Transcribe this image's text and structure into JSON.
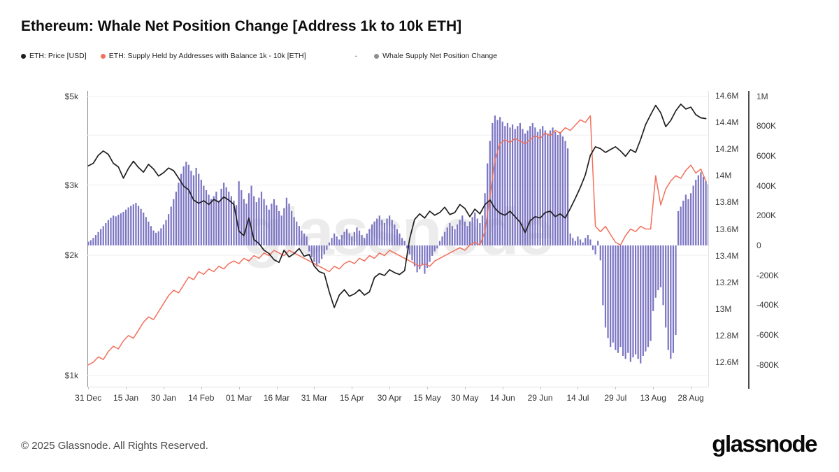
{
  "title": "Ethereum: Whale Net Position Change [Address 1k to 10k ETH]",
  "legend": {
    "items": [
      {
        "label": "ETH: Price [USD]"
      },
      {
        "label": "ETH: Supply Held by Addresses with Balance 1k - 10k [ETH]"
      },
      {
        "label": "Whale Supply Net Position Change"
      }
    ],
    "dash": "-"
  },
  "colors": {
    "price": "#1f1f1f",
    "supply": "#f2705c",
    "bars": "#7b75c3",
    "whale_dot": "#8e8e8e",
    "grid": "#efefef"
  },
  "watermark": "glassnode",
  "footer": {
    "copyright": "© 2025 Glassnode. All Rights Reserved.",
    "logo": "glassnode"
  },
  "axes": {
    "price": {
      "labels": [
        "$5k",
        "$3k",
        "$2k",
        "$1k"
      ],
      "values": [
        5000,
        3000,
        2000,
        1000
      ]
    },
    "supply": {
      "labels": [
        "14.6M",
        "14.4M",
        "14.2M",
        "14M",
        "13.8M",
        "13.6M",
        "13.4M",
        "13.2M",
        "13M",
        "12.8M",
        "12.6M"
      ],
      "values": [
        14.6,
        14.4,
        14.2,
        14.0,
        13.8,
        13.6,
        13.4,
        13.2,
        13.0,
        12.8,
        12.6
      ]
    },
    "npc": {
      "labels": [
        "1M",
        "800K",
        "600K",
        "400K",
        "200K",
        "0",
        "-200K",
        "-400K",
        "-600K",
        "-800K"
      ],
      "values": [
        1000,
        800,
        600,
        400,
        200,
        0,
        -200,
        -400,
        -600,
        -800
      ]
    },
    "x": {
      "labels": [
        "31 Dec",
        "15 Jan",
        "30 Jan",
        "14 Feb",
        "01 Mar",
        "16 Mar",
        "31 Mar",
        "15 Apr",
        "30 Apr",
        "15 May",
        "30 May",
        "14 Jun",
        "29 Jun",
        "14 Jul",
        "29 Jul",
        "13 Aug",
        "28 Aug"
      ],
      "days": [
        0,
        15,
        30,
        45,
        60,
        75,
        90,
        105,
        120,
        135,
        150,
        165,
        180,
        195,
        210,
        225,
        240
      ]
    }
  },
  "chart_data": {
    "type": "mixed",
    "title": "Ethereum: Whale Net Position Change [Address 1k to 10k ETH]",
    "x_unit": "days since 31 Dec",
    "x_range_days": [
      0,
      247
    ],
    "grid": "horizontal-faint",
    "gridlines_price_usd": [
      5000,
      4000,
      3000,
      2000,
      1000
    ],
    "axes_config": {
      "price_usd": {
        "scale": "log",
        "ylim": [
          1000,
          5000
        ],
        "side": "left"
      },
      "supply_m_eth": {
        "scale": "linear",
        "ylim": [
          12.6,
          14.6
        ],
        "side": "right-inner"
      },
      "npc_k_eth": {
        "scale": "linear",
        "ylim": [
          -800,
          1000
        ],
        "side": "right-outer"
      }
    },
    "series": [
      {
        "name": "ETH: Price [USD]",
        "type": "line",
        "axis": "price_usd",
        "x_step_days": 2,
        "values": [
          3350,
          3400,
          3560,
          3650,
          3580,
          3400,
          3330,
          3120,
          3300,
          3440,
          3320,
          3230,
          3380,
          3290,
          3160,
          3220,
          3310,
          3260,
          3120,
          2980,
          2920,
          2750,
          2700,
          2740,
          2680,
          2760,
          2720,
          2800,
          2750,
          2680,
          2300,
          2240,
          2480,
          2190,
          2140,
          2060,
          2020,
          1950,
          1920,
          2060,
          1980,
          2020,
          2080,
          1990,
          2010,
          1880,
          1820,
          1800,
          1620,
          1480,
          1590,
          1640,
          1580,
          1600,
          1640,
          1590,
          1620,
          1760,
          1800,
          1780,
          1840,
          1810,
          1790,
          1830,
          2200,
          2460,
          2540,
          2480,
          2580,
          2520,
          2560,
          2640,
          2530,
          2560,
          2680,
          2620,
          2500,
          2610,
          2540,
          2680,
          2750,
          2620,
          2550,
          2520,
          2580,
          2500,
          2420,
          2280,
          2440,
          2500,
          2480,
          2560,
          2580,
          2500,
          2540,
          2480,
          2620,
          2780,
          2960,
          3180,
          3560,
          3740,
          3700,
          3620,
          3680,
          3740,
          3650,
          3540,
          3680,
          3620,
          3900,
          4250,
          4500,
          4750,
          4550,
          4200,
          4350,
          4600,
          4780,
          4650,
          4700,
          4500,
          4420,
          4400
        ]
      },
      {
        "name": "ETH: Supply Held by Addresses with Balance 1k - 10k [ETH]",
        "type": "line",
        "axis": "supply_m_eth",
        "x_step_days": 2,
        "values": [
          12.58,
          12.6,
          12.64,
          12.62,
          12.68,
          12.72,
          12.7,
          12.76,
          12.8,
          12.78,
          12.84,
          12.9,
          12.94,
          12.92,
          12.98,
          13.04,
          13.1,
          13.14,
          13.12,
          13.18,
          13.24,
          13.22,
          13.28,
          13.26,
          13.3,
          13.28,
          13.32,
          13.3,
          13.34,
          13.36,
          13.34,
          13.38,
          13.36,
          13.4,
          13.38,
          13.42,
          13.4,
          13.44,
          13.42,
          13.4,
          13.44,
          13.42,
          13.4,
          13.38,
          13.36,
          13.34,
          13.32,
          13.3,
          13.28,
          13.32,
          13.3,
          13.34,
          13.36,
          13.34,
          13.38,
          13.36,
          13.4,
          13.38,
          13.42,
          13.4,
          13.44,
          13.42,
          13.4,
          13.38,
          13.36,
          13.34,
          13.32,
          13.34,
          13.32,
          13.36,
          13.38,
          13.4,
          13.42,
          13.44,
          13.46,
          13.44,
          13.48,
          13.5,
          13.48,
          13.58,
          13.85,
          14.12,
          14.24,
          14.27,
          14.25,
          14.28,
          14.26,
          14.24,
          14.27,
          14.3,
          14.28,
          14.32,
          14.3,
          14.34,
          14.32,
          14.36,
          14.34,
          14.38,
          14.42,
          14.4,
          14.45,
          13.62,
          13.58,
          13.62,
          13.56,
          13.5,
          13.48,
          13.55,
          13.6,
          13.58,
          13.62,
          13.6,
          13.6,
          14.0,
          13.78,
          13.9,
          13.96,
          14.0,
          13.98,
          14.04,
          14.08,
          14.02,
          14.05,
          13.96
        ]
      },
      {
        "name": "Whale Supply Net Position Change",
        "type": "bar",
        "axis": "npc_k_eth",
        "x_step_days": 1,
        "values": [
          25,
          35,
          50,
          70,
          90,
          110,
          130,
          150,
          170,
          185,
          200,
          195,
          205,
          215,
          225,
          240,
          255,
          265,
          275,
          285,
          265,
          245,
          220,
          190,
          160,
          130,
          100,
          85,
          95,
          115,
          140,
          170,
          210,
          260,
          310,
          360,
          420,
          480,
          530,
          560,
          540,
          500,
          470,
          520,
          480,
          440,
          400,
          370,
          340,
          310,
          330,
          360,
          300,
          380,
          420,
          390,
          360,
          330,
          300,
          270,
          430,
          370,
          310,
          280,
          350,
          400,
          330,
          290,
          320,
          360,
          310,
          270,
          240,
          280,
          310,
          270,
          230,
          200,
          250,
          320,
          280,
          230,
          190,
          160,
          130,
          100,
          80,
          60,
          -40,
          -80,
          -110,
          -140,
          -120,
          -90,
          -60,
          -30,
          20,
          50,
          80,
          60,
          40,
          70,
          90,
          110,
          80,
          60,
          90,
          120,
          100,
          70,
          50,
          80,
          110,
          140,
          160,
          180,
          200,
          170,
          150,
          180,
          200,
          170,
          140,
          110,
          80,
          50,
          30,
          -20,
          -60,
          -100,
          -140,
          -180,
          -160,
          -130,
          -190,
          -150,
          -110,
          -70,
          -40,
          -20,
          30,
          60,
          90,
          120,
          150,
          130,
          110,
          140,
          170,
          200,
          160,
          130,
          160,
          190,
          220,
          180,
          150,
          200,
          350,
          550,
          700,
          820,
          870,
          840,
          860,
          830,
          800,
          820,
          790,
          810,
          780,
          800,
          820,
          780,
          750,
          770,
          800,
          820,
          790,
          760,
          780,
          800,
          770,
          750,
          770,
          790,
          760,
          740,
          760,
          730,
          700,
          650,
          80,
          50,
          30,
          60,
          40,
          20,
          50,
          70,
          40,
          -30,
          -60,
          30,
          -100,
          -400,
          -550,
          -620,
          -680,
          -650,
          -700,
          -720,
          -680,
          -740,
          -760,
          -720,
          -780,
          -750,
          -730,
          -760,
          -790,
          -740,
          -710,
          -680,
          -640,
          -440,
          -350,
          -300,
          -280,
          -400,
          -550,
          -700,
          -760,
          -720,
          -600,
          230,
          260,
          300,
          340,
          310,
          350,
          400,
          440,
          470,
          490,
          460,
          430,
          410
        ]
      }
    ]
  }
}
